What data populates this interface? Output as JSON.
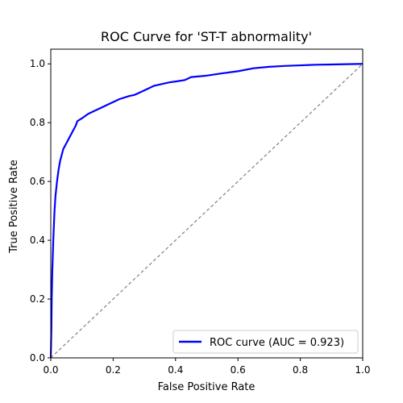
{
  "chart_data": {
    "type": "line",
    "title": "ROC Curve for 'ST-T abnormality'",
    "xlabel": "False Positive Rate",
    "ylabel": "True Positive Rate",
    "xlim": [
      0.0,
      1.0
    ],
    "ylim": [
      0.0,
      1.05
    ],
    "x_ticks": [
      "0.0",
      "0.2",
      "0.4",
      "0.6",
      "0.8",
      "1.0"
    ],
    "y_ticks": [
      "0.0",
      "0.2",
      "0.4",
      "0.6",
      "0.8",
      "1.0"
    ],
    "grid": false,
    "legend_position": "lower-right",
    "series": [
      {
        "name": "ROC curve (AUC = 0.923)",
        "color": "#0000ff",
        "style": "solid",
        "x": [
          0.0,
          0.002,
          0.003,
          0.004,
          0.005,
          0.006,
          0.008,
          0.01,
          0.012,
          0.015,
          0.018,
          0.02,
          0.025,
          0.03,
          0.035,
          0.04,
          0.05,
          0.06,
          0.07,
          0.08,
          0.085,
          0.1,
          0.12,
          0.15,
          0.18,
          0.2,
          0.22,
          0.25,
          0.27,
          0.3,
          0.33,
          0.35,
          0.38,
          0.4,
          0.43,
          0.45,
          0.5,
          0.55,
          0.6,
          0.65,
          0.7,
          0.75,
          0.8,
          0.85,
          0.9,
          0.95,
          1.0
        ],
        "y": [
          0.0,
          0.1,
          0.2,
          0.25,
          0.3,
          0.33,
          0.4,
          0.45,
          0.5,
          0.55,
          0.58,
          0.6,
          0.64,
          0.67,
          0.69,
          0.71,
          0.73,
          0.75,
          0.77,
          0.79,
          0.805,
          0.815,
          0.83,
          0.845,
          0.86,
          0.87,
          0.88,
          0.89,
          0.895,
          0.91,
          0.925,
          0.93,
          0.937,
          0.94,
          0.945,
          0.955,
          0.96,
          0.968,
          0.975,
          0.985,
          0.99,
          0.993,
          0.995,
          0.997,
          0.998,
          0.999,
          1.0
        ]
      },
      {
        "name": "",
        "color": "#808080",
        "style": "dashed",
        "x": [
          0.0,
          1.0
        ],
        "y": [
          0.0,
          1.0
        ]
      }
    ]
  }
}
